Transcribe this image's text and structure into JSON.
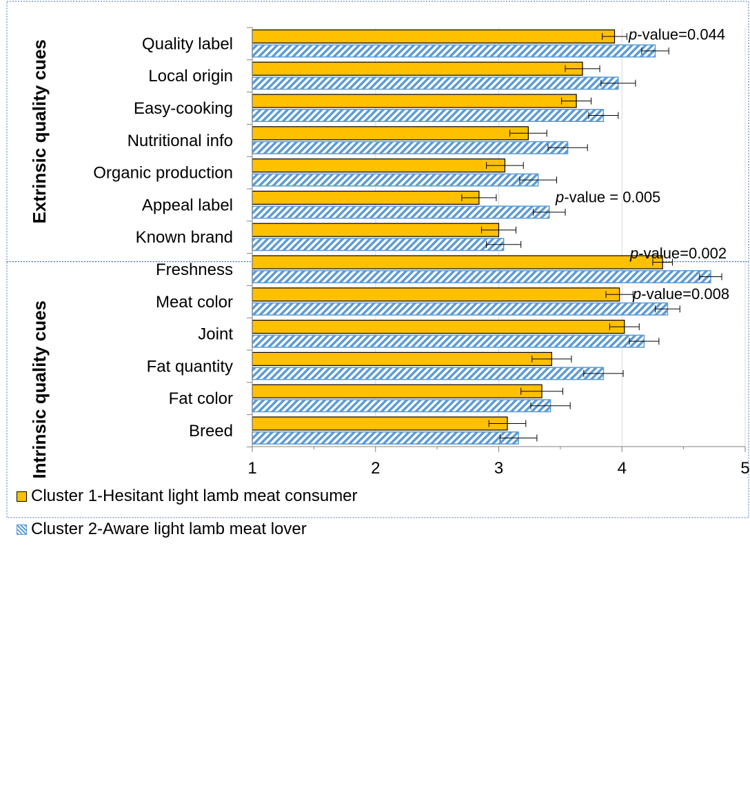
{
  "chart_data": {
    "type": "bar",
    "orientation": "horizontal",
    "groups": [
      {
        "label": "Extrinsic quality cues",
        "categories": [
          "Quality label",
          "Local origin",
          "Easy-cooking",
          "Nutritional info",
          "Organic production",
          "Appeal label",
          "Known brand"
        ]
      },
      {
        "label": "Intrinsic quality cues",
        "categories": [
          "Freshness",
          "Meat color",
          "Joint",
          "Fat quantity",
          "Fat color",
          "Breed"
        ]
      }
    ],
    "categories": [
      "Quality label",
      "Local origin",
      "Easy-cooking",
      "Nutritional info",
      "Organic production",
      "Appeal label",
      "Known brand",
      "Freshness",
      "Meat color",
      "Joint",
      "Fat quantity",
      "Fat color",
      "Breed"
    ],
    "series": [
      {
        "name": "Cluster 1-Hesitant light lamb meat consumer",
        "color": "#ffc000",
        "pattern": "solid",
        "values": [
          3.94,
          3.68,
          3.63,
          3.24,
          3.05,
          2.84,
          3.0,
          4.33,
          3.98,
          4.02,
          3.43,
          3.35,
          3.07
        ],
        "errors": [
          0.1,
          0.14,
          0.12,
          0.15,
          0.15,
          0.14,
          0.14,
          0.08,
          0.11,
          0.12,
          0.16,
          0.17,
          0.15
        ]
      },
      {
        "name": "Cluster 2-Aware light lamb meat lover",
        "color": "#5b9bd5",
        "pattern": "diagonal-hatch",
        "values": [
          4.27,
          3.97,
          3.85,
          3.56,
          3.32,
          3.41,
          3.04,
          4.72,
          4.37,
          4.18,
          3.85,
          3.42,
          3.16
        ],
        "errors": [
          0.11,
          0.14,
          0.12,
          0.16,
          0.15,
          0.13,
          0.14,
          0.09,
          0.1,
          0.12,
          0.16,
          0.16,
          0.15
        ]
      }
    ],
    "annotations": [
      {
        "category": "Quality label",
        "italic": "p",
        "text": "-value=0.044"
      },
      {
        "category": "Appeal label",
        "italic": "p",
        "text": "-value = 0.005"
      },
      {
        "category": "Freshness",
        "italic": "p",
        "text": "-value=0.002"
      },
      {
        "category": "Meat color",
        "italic": "p",
        "text": "-value=0.008"
      }
    ],
    "xlim": [
      1,
      5
    ],
    "xticks": [
      1,
      2,
      3,
      4,
      5
    ],
    "xlabel": "",
    "grid": true,
    "legend": "bottom-left"
  }
}
